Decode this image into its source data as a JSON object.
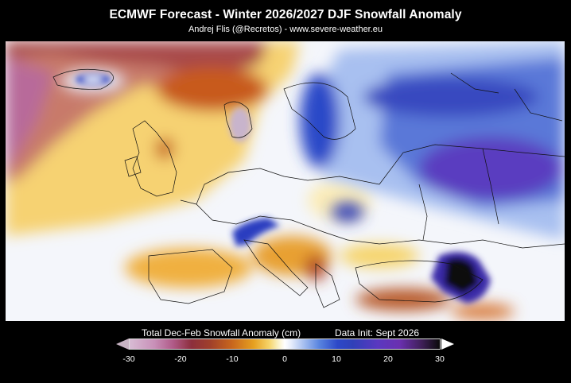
{
  "header": {
    "title": "ECMWF Forecast - Winter 2026/2027 DJF Snowfall Anomaly",
    "subtitle": "Andrej Flis (@Recretos) - www.severe-weather.eu"
  },
  "legend": {
    "title": "Total Dec-Feb Snowfall Anomaly (cm)",
    "data_init": "Data Init: Sept 2026",
    "ticks": [
      "-30",
      "-20",
      "-10",
      "0",
      "10",
      "20",
      "30"
    ],
    "range": [
      -30,
      30
    ],
    "colors": {
      "min": "#d8bcd4",
      "deficit": "#8c2e3c",
      "neutral": "#ffffff",
      "surplus": "#2c48c8",
      "max": "#0a0a0a"
    }
  }
}
